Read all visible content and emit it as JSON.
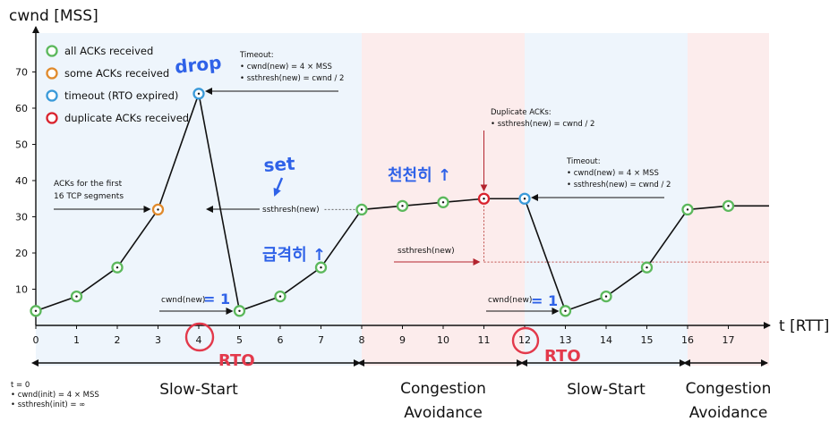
{
  "chart_data": {
    "type": "line",
    "ylabel": "cwnd [MSS]",
    "xlabel": "t [RTT]",
    "ylim": [
      0,
      75
    ],
    "yticks": [
      10,
      20,
      30,
      40,
      50,
      60,
      70
    ],
    "xticks": [
      0,
      1,
      2,
      3,
      4,
      5,
      6,
      7,
      8,
      9,
      10,
      11,
      12,
      13,
      14,
      15,
      16,
      17
    ],
    "grid": false,
    "legend_position": "top-left",
    "legend": [
      {
        "label": "all ACKs received",
        "color": "#5cb85c"
      },
      {
        "label": "some ACKs received",
        "color": "#e08a2c"
      },
      {
        "label": "timeout (RTO expired)",
        "color": "#3a9ad9"
      },
      {
        "label": "duplicate ACKs received",
        "color": "#d9232e"
      }
    ],
    "points": [
      {
        "x": 0,
        "y": 4,
        "status": "all"
      },
      {
        "x": 1,
        "y": 8,
        "status": "all"
      },
      {
        "x": 2,
        "y": 16,
        "status": "all"
      },
      {
        "x": 3,
        "y": 32,
        "status": "some"
      },
      {
        "x": 4,
        "y": 64,
        "status": "timeout"
      },
      {
        "x": 5,
        "y": 4,
        "status": "all"
      },
      {
        "x": 6,
        "y": 8,
        "status": "all"
      },
      {
        "x": 7,
        "y": 16,
        "status": "all"
      },
      {
        "x": 8,
        "y": 32,
        "status": "all"
      },
      {
        "x": 9,
        "y": 33,
        "status": "all"
      },
      {
        "x": 10,
        "y": 34,
        "status": "all"
      },
      {
        "x": 11,
        "y": 35,
        "status": "dup"
      },
      {
        "x": 12,
        "y": 35,
        "status": "timeout"
      },
      {
        "x": 13,
        "y": 4,
        "status": "all"
      },
      {
        "x": 14,
        "y": 8,
        "status": "all"
      },
      {
        "x": 15,
        "y": 16,
        "status": "all"
      },
      {
        "x": 16,
        "y": 32,
        "status": "all"
      },
      {
        "x": 17,
        "y": 33,
        "status": "all"
      }
    ],
    "tail_to": {
      "x": 18,
      "y": 33
    },
    "regions": [
      {
        "from": 0,
        "to": 8,
        "label": "Slow-Start",
        "color": "#eef5fc"
      },
      {
        "from": 8,
        "to": 12,
        "label": "Congestion\nAvoidance",
        "color": "#fcecec"
      },
      {
        "from": 12,
        "to": 16,
        "label": "Slow-Start",
        "color": "#eef5fc"
      },
      {
        "from": 16,
        "to": 18,
        "label": "Congestion\nAvoidance",
        "color": "#fcecec"
      }
    ],
    "ssthresh_lines": [
      {
        "y": 32,
        "from": 7,
        "to": 8,
        "label": "ssthresh(new)"
      },
      {
        "y": 17.5,
        "from": 11,
        "to": 18,
        "label": "ssthresh(new)"
      }
    ],
    "annotations": [
      {
        "id": "first16",
        "lines": [
          "ACKs for the first",
          "16 TCP segments"
        ]
      },
      {
        "id": "timeout1",
        "lines": [
          "Timeout:",
          "• cwnd(new) = 4 × MSS",
          "• ssthresh(new) = cwnd / 2"
        ]
      },
      {
        "id": "dupacks",
        "lines": [
          "Duplicate ACKs:",
          "• ssthresh(new) = cwnd / 2"
        ]
      },
      {
        "id": "timeout2",
        "lines": [
          "Timeout:",
          "• cwnd(new) = 4 × MSS",
          "• ssthresh(new) = cwnd / 2"
        ]
      },
      {
        "id": "cwndnew1",
        "lines": [
          "cwnd(new)"
        ]
      },
      {
        "id": "cwndnew2",
        "lines": [
          "cwnd(new)"
        ]
      },
      {
        "id": "init",
        "lines": [
          "t = 0",
          "• cwnd(init) = 4 × MSS",
          "• ssthresh(init) = ∞"
        ]
      }
    ],
    "handwriting": [
      {
        "id": "drop",
        "text": "drop"
      },
      {
        "id": "set",
        "text": "set"
      },
      {
        "id": "kr1",
        "text": "급격히 ↑"
      },
      {
        "id": "kr2",
        "text": "천천히 ↑"
      },
      {
        "id": "eq1",
        "text": "= 1"
      },
      {
        "id": "eq2",
        "text": "= 1"
      },
      {
        "id": "rto1",
        "text": "RTO"
      },
      {
        "id": "rto2",
        "text": "RTO"
      }
    ]
  }
}
